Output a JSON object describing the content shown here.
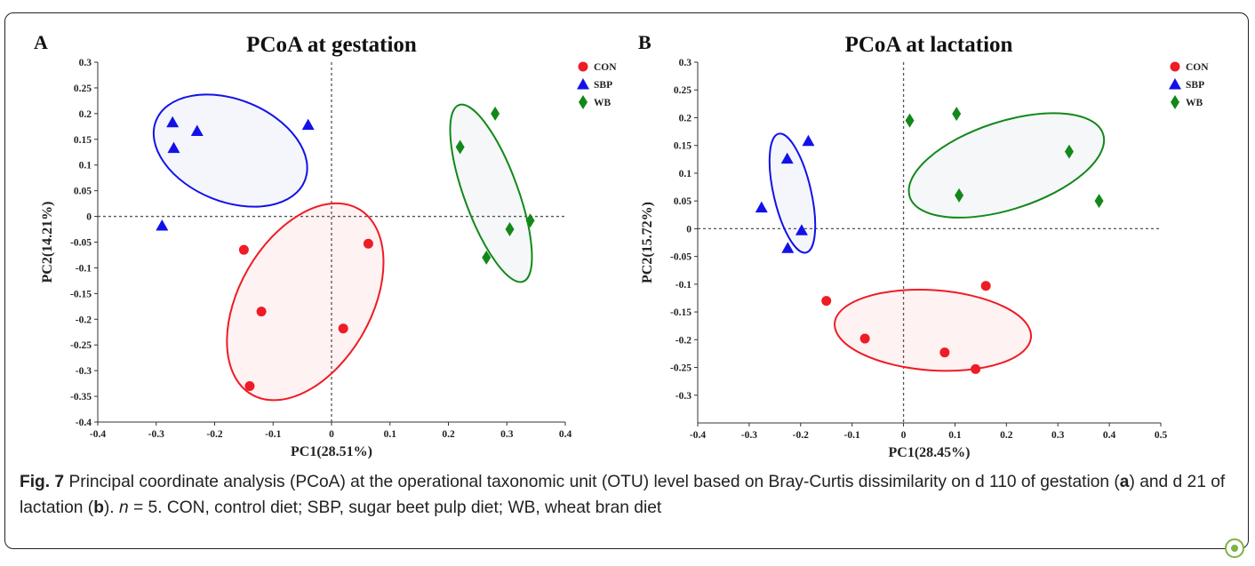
{
  "chart_data": [
    {
      "type": "scatter",
      "panel_label": "A",
      "title": "PCoA at gestation",
      "xlabel": "PC1(28.51%)",
      "ylabel": "PC2(14.21%)",
      "xlim": [
        -0.4,
        0.4
      ],
      "ylim": [
        -0.4,
        0.3
      ],
      "xticks": [
        -0.4,
        -0.3,
        -0.2,
        -0.1,
        0,
        0.1,
        0.2,
        0.3,
        0.4
      ],
      "yticks": [
        -0.4,
        -0.35,
        -0.3,
        -0.25,
        -0.2,
        -0.15,
        -0.1,
        -0.05,
        0,
        0.05,
        0.1,
        0.15,
        0.2,
        0.25,
        0.3
      ],
      "xtick_labels": [
        "-0.4",
        "-0.3",
        "-0.2",
        "-0.1",
        "0",
        "0.1",
        "0.2",
        "0.3",
        "0.4"
      ],
      "ytick_labels": [
        "-0.4",
        "-0.35",
        "-0.3",
        "-0.25",
        "-0.2",
        "-0.15",
        "-0.1",
        "-0.05",
        "0",
        "0.05",
        "0.1",
        "0.15",
        "0.2",
        "0.25",
        "0.3"
      ],
      "legend_position": "top-right",
      "series": [
        {
          "name": "CON",
          "marker": "circle",
          "color": "#ee1c25",
          "points": [
            [
              -0.15,
              -0.065
            ],
            [
              -0.12,
              -0.185
            ],
            [
              -0.14,
              -0.33
            ],
            [
              0.02,
              -0.218
            ],
            [
              0.063,
              -0.053
            ]
          ],
          "ellipse": {
            "center": [
              -0.045,
              -0.166
            ],
            "radius_x": 0.195,
            "radius_y": 0.12,
            "rotation_deg": -60
          }
        },
        {
          "name": "SBP",
          "marker": "triangle",
          "color": "#1212e8",
          "points": [
            [
              -0.272,
              0.183
            ],
            [
              -0.27,
              0.133
            ],
            [
              -0.23,
              0.166
            ],
            [
              -0.04,
              0.178
            ],
            [
              -0.29,
              -0.018
            ]
          ],
          "ellipse": {
            "center": [
              -0.173,
              0.128
            ],
            "radius_x": 0.146,
            "radius_y": 0.093,
            "rotation_deg": 22
          }
        },
        {
          "name": "WB",
          "marker": "diamond",
          "color": "#13881a",
          "points": [
            [
              0.28,
              0.2
            ],
            [
              0.22,
              0.135
            ],
            [
              0.305,
              -0.025
            ],
            [
              0.34,
              -0.008
            ],
            [
              0.265,
              -0.08
            ]
          ],
          "ellipse": {
            "center": [
              0.273,
              0.045
            ],
            "radius_x": 0.171,
            "radius_y": 0.049,
            "rotation_deg": 70
          }
        }
      ]
    },
    {
      "type": "scatter",
      "panel_label": "B",
      "title": "PCoA at lactation",
      "xlabel": "PC1(28.45%)",
      "ylabel": "PC2(15.72%)",
      "xlim": [
        -0.4,
        0.5
      ],
      "ylim": [
        -0.35,
        0.3
      ],
      "xticks": [
        -0.4,
        -0.3,
        -0.2,
        -0.1,
        0,
        0.1,
        0.2,
        0.3,
        0.4,
        0.5
      ],
      "yticks": [
        -0.3,
        -0.25,
        -0.2,
        -0.15,
        -0.1,
        -0.05,
        0,
        0.05,
        0.1,
        0.15,
        0.2,
        0.25,
        0.3
      ],
      "xtick_labels": [
        "-0.4",
        "-0.3",
        "-0.2",
        "-0.1",
        "0",
        "0.1",
        "0.2",
        "0.3",
        "0.4",
        "0.5"
      ],
      "ytick_labels": [
        "-0.3",
        "-0.25",
        "-0.2",
        "-0.15",
        "-0.1",
        "-0.05",
        "0",
        "0.05",
        "0.1",
        "0.15",
        "0.2",
        "0.25",
        "0.3"
      ],
      "legend_position": "top-right",
      "series": [
        {
          "name": "CON",
          "marker": "circle",
          "color": "#ee1c25",
          "points": [
            [
              -0.15,
              -0.13
            ],
            [
              -0.075,
              -0.198
            ],
            [
              0.08,
              -0.223
            ],
            [
              0.14,
              -0.253
            ],
            [
              0.16,
              -0.103
            ]
          ],
          "ellipse": {
            "center": [
              0.057,
              -0.183
            ],
            "radius_x": 0.184,
            "radius_y": 0.075,
            "rotation_deg": 4
          }
        },
        {
          "name": "SBP",
          "marker": "triangle",
          "color": "#1212e8",
          "points": [
            [
              -0.276,
              0.038
            ],
            [
              -0.226,
              0.126
            ],
            [
              -0.185,
              0.158
            ],
            [
              -0.198,
              -0.003
            ],
            [
              -0.225,
              -0.035
            ]
          ],
          "ellipse": {
            "center": [
              -0.216,
              0.064
            ],
            "radius_x": 0.114,
            "radius_y": 0.035,
            "rotation_deg": 77
          }
        },
        {
          "name": "WB",
          "marker": "diamond",
          "color": "#13881a",
          "points": [
            [
              0.012,
              0.195
            ],
            [
              0.103,
              0.207
            ],
            [
              0.322,
              0.139
            ],
            [
              0.38,
              0.05
            ],
            [
              0.108,
              0.06
            ]
          ],
          "ellipse": {
            "center": [
              0.2,
              0.114
            ],
            "radius_x": 0.19,
            "radius_y": 0.082,
            "rotation_deg": -18
          }
        }
      ]
    }
  ],
  "caption": {
    "fig_label": "Fig. 7",
    "text_1": " Principal coordinate analysis (PCoA) at the operational taxonomic unit (OTU) level based on Bray-Curtis dissimilarity on d 110 of gestation (",
    "a_label": "a",
    "text_2": ") and d 21 of lactation (",
    "b_label": "b",
    "text_3": "). ",
    "n_label": "n",
    "text_4": " = 5. CON, control diet; SBP, sugar beet pulp diet; WB, wheat bran diet"
  },
  "badge_icon": "open-access-leaf-icon"
}
